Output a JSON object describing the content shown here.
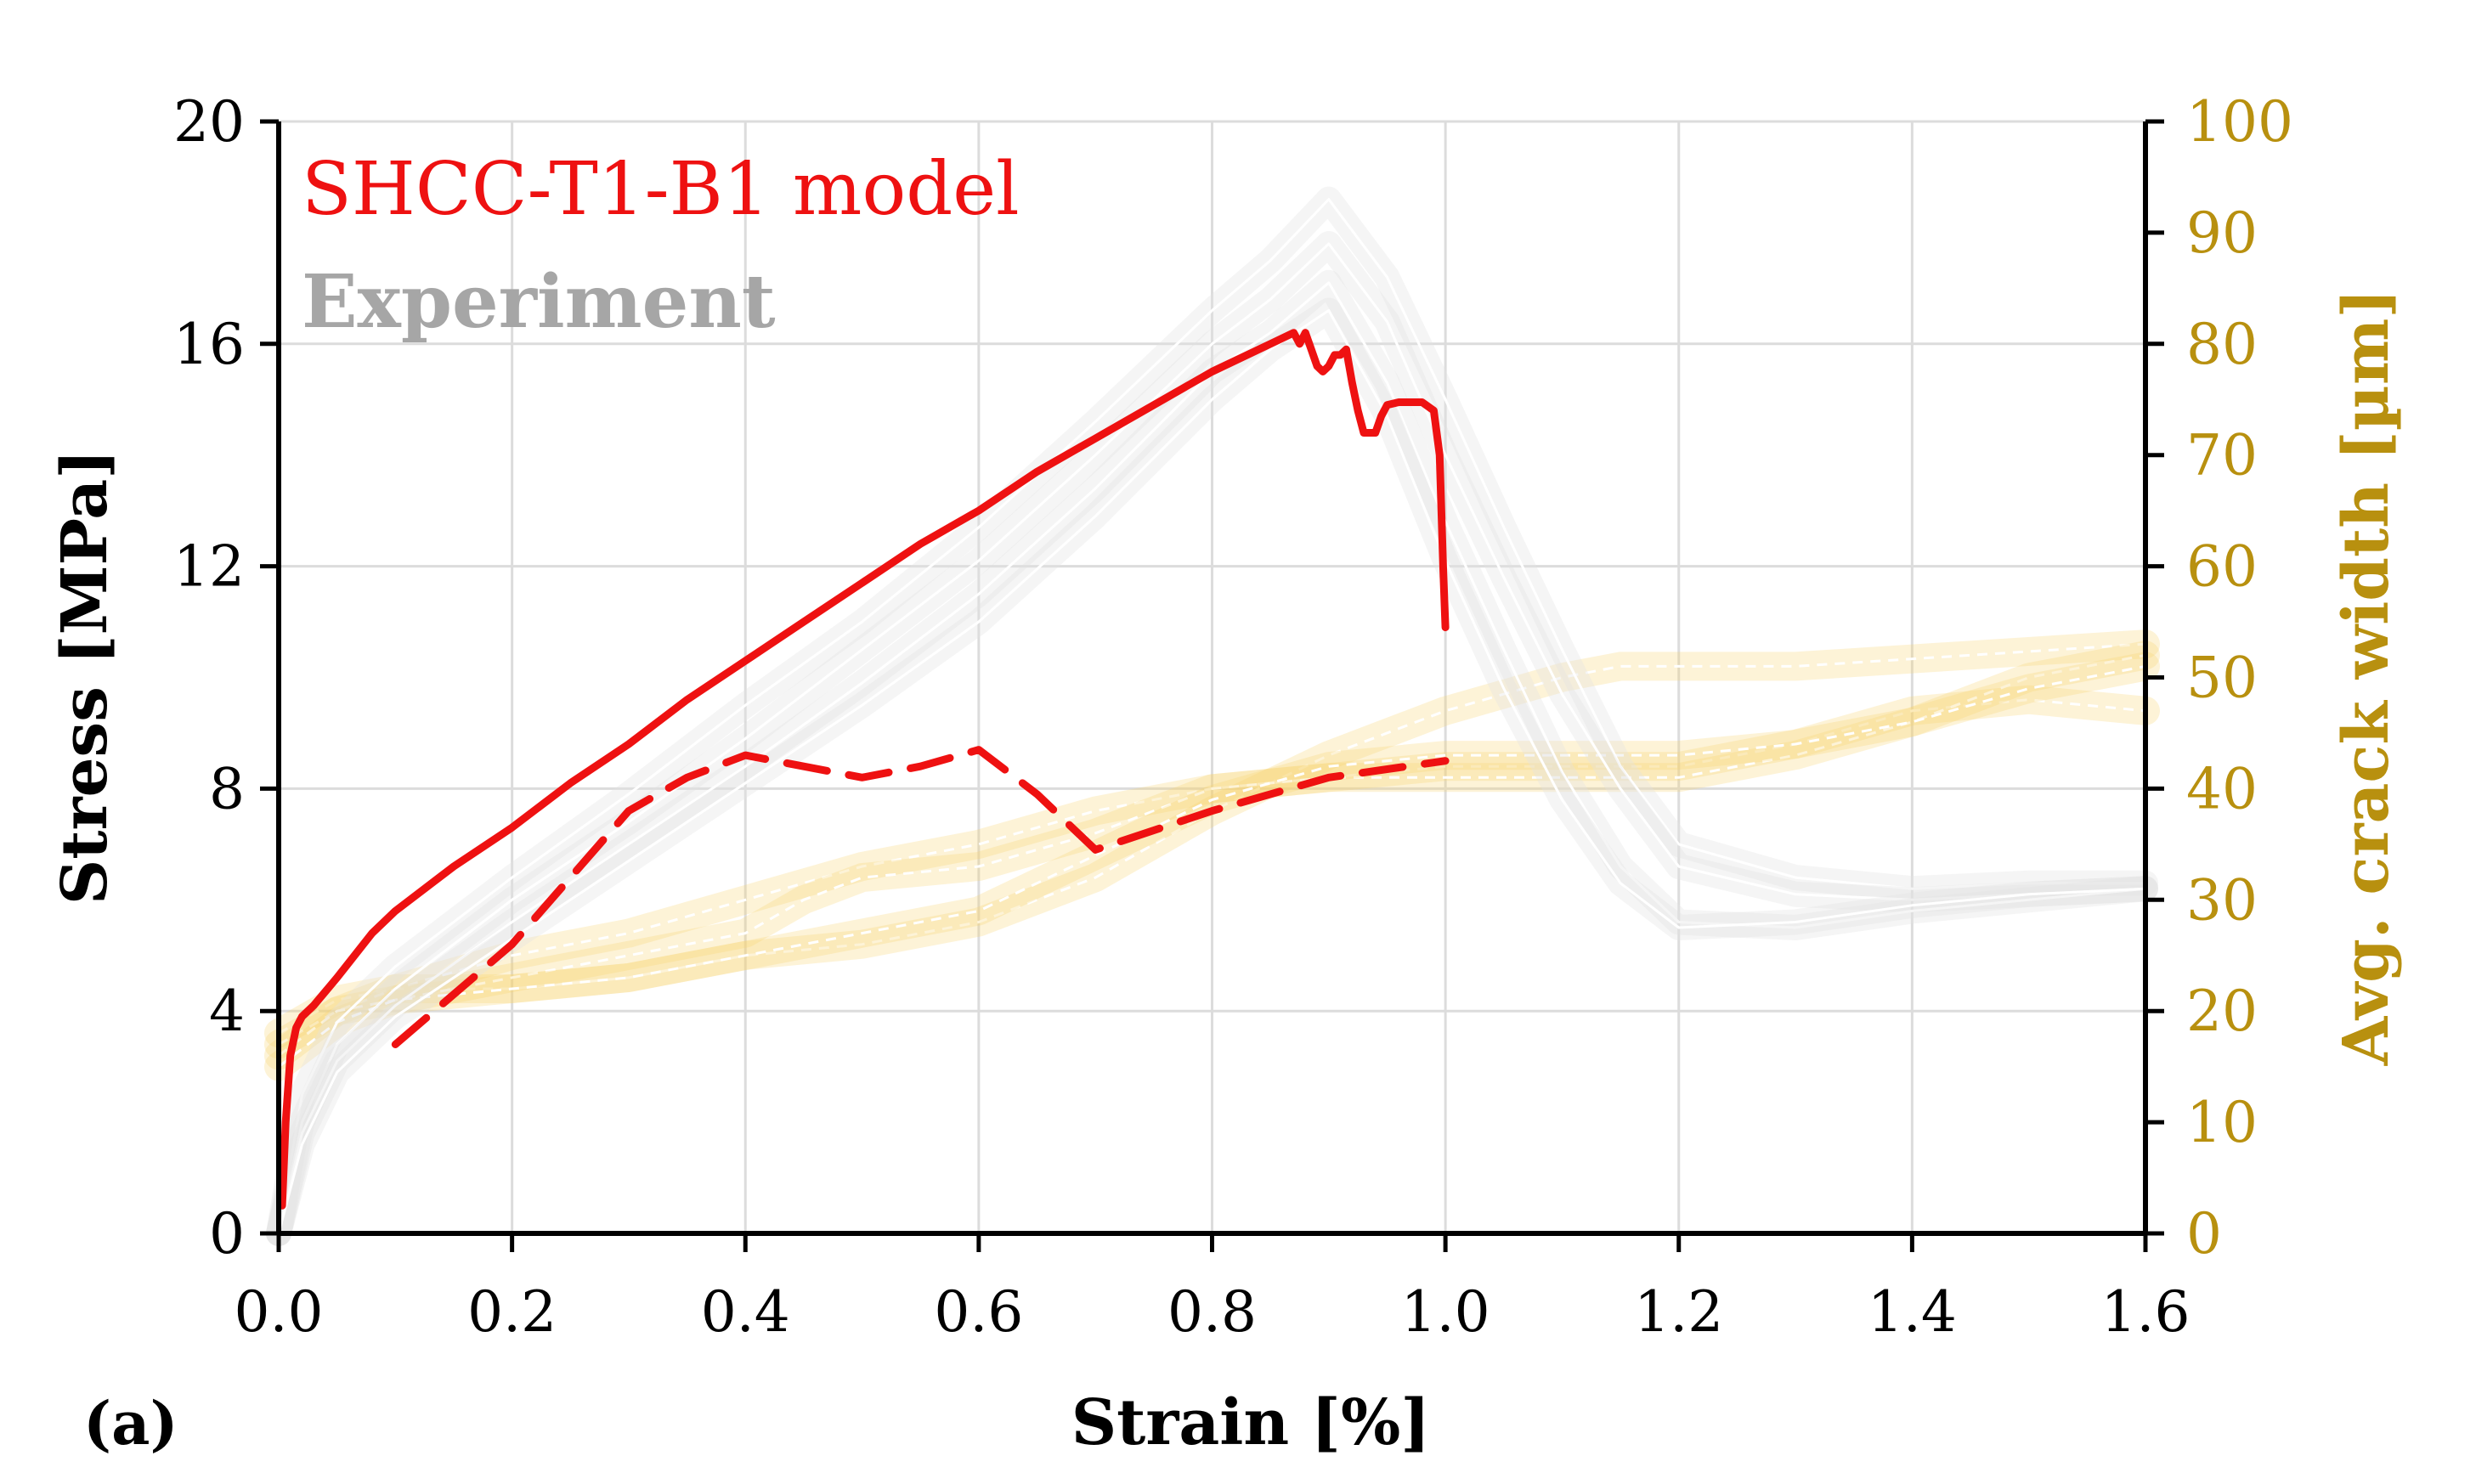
{
  "chart_data": {
    "type": "line",
    "panel_label": "(a)",
    "xlabel": "Strain [%]",
    "ylabel": "Stress [MPa]",
    "y2label": "Avg. crack width [µm]",
    "xlim": [
      0,
      1.6
    ],
    "ylim": [
      0,
      20
    ],
    "y2lim": [
      0,
      100
    ],
    "x_ticks": [
      "0.0",
      "0.2",
      "0.4",
      "0.6",
      "0.8",
      "1.0",
      "1.2",
      "1.4",
      "1.6"
    ],
    "y_ticks": [
      "0",
      "4",
      "8",
      "12",
      "16",
      "20"
    ],
    "y2_ticks": [
      "0",
      "10",
      "20",
      "30",
      "40",
      "50",
      "60",
      "70",
      "80",
      "90",
      "100"
    ],
    "grid": true,
    "legend": [
      {
        "label": "SHCC-T1-B1 model",
        "color": "#ee1111"
      },
      {
        "label": "Experiment",
        "color": "#a6a6a6"
      }
    ],
    "colors": {
      "model": "#ee1111",
      "experiment_stress": "#e2e2e2",
      "experiment_crack": "#f7d56e",
      "secondary_axis": "#b8900f"
    },
    "series": [
      {
        "name": "SHCC-T1-B1 model stress",
        "axis": "left",
        "style": "solid",
        "x": [
          0.003,
          0.006,
          0.01,
          0.015,
          0.02,
          0.03,
          0.05,
          0.08,
          0.1,
          0.15,
          0.2,
          0.25,
          0.3,
          0.35,
          0.4,
          0.45,
          0.5,
          0.55,
          0.6,
          0.65,
          0.7,
          0.75,
          0.8,
          0.85,
          0.87,
          0.875,
          0.88,
          0.885,
          0.89,
          0.895,
          0.9,
          0.905,
          0.91,
          0.915,
          0.92,
          0.925,
          0.93,
          0.94,
          0.945,
          0.95,
          0.96,
          0.98,
          0.99,
          0.995,
          0.998,
          1.0
        ],
        "y": [
          0.5,
          2.0,
          3.2,
          3.7,
          3.9,
          4.1,
          4.6,
          5.4,
          5.8,
          6.6,
          7.3,
          8.1,
          8.8,
          9.6,
          10.3,
          11.0,
          11.7,
          12.4,
          13.0,
          13.7,
          14.3,
          14.9,
          15.5,
          16.0,
          16.2,
          16.0,
          16.2,
          15.9,
          15.6,
          15.5,
          15.6,
          15.8,
          15.8,
          15.9,
          15.3,
          14.8,
          14.4,
          14.4,
          14.7,
          14.9,
          14.95,
          14.95,
          14.8,
          14.0,
          12.0,
          10.9
        ]
      },
      {
        "name": "SHCC-T1-B1 model crack width",
        "axis": "right",
        "style": "dashed",
        "x": [
          0.1,
          0.2,
          0.3,
          0.35,
          0.4,
          0.5,
          0.55,
          0.6,
          0.65,
          0.7,
          0.8,
          0.9,
          1.0
        ],
        "y": [
          17,
          26,
          38,
          41,
          43,
          41,
          42,
          43.5,
          39.5,
          34.5,
          38,
          41,
          42.5
        ]
      },
      {
        "name": "Experiment stress 1",
        "axis": "left",
        "style": "solid",
        "x": [
          0,
          0.02,
          0.05,
          0.1,
          0.2,
          0.3,
          0.4,
          0.5,
          0.6,
          0.7,
          0.8,
          0.85,
          0.9,
          0.95,
          1.0,
          1.05,
          1.1,
          1.15,
          1.2,
          1.3,
          1.4,
          1.5,
          1.6
        ],
        "y": [
          0,
          2.5,
          3.8,
          4.8,
          6.4,
          7.9,
          9.5,
          11.0,
          12.7,
          14.6,
          16.6,
          17.5,
          18.6,
          17.2,
          15.0,
          12.7,
          10.5,
          8.4,
          7.0,
          6.4,
          6.2,
          6.3,
          6.3
        ]
      },
      {
        "name": "Experiment stress 2",
        "axis": "left",
        "style": "solid",
        "x": [
          0,
          0.02,
          0.05,
          0.1,
          0.2,
          0.3,
          0.4,
          0.5,
          0.6,
          0.7,
          0.8,
          0.85,
          0.9,
          0.95,
          1.0,
          1.05,
          1.1,
          1.15,
          1.2,
          1.3,
          1.4,
          1.5,
          1.6
        ],
        "y": [
          0,
          2.0,
          3.4,
          4.4,
          6.0,
          7.4,
          8.9,
          10.5,
          12.1,
          14.0,
          16.0,
          16.8,
          17.8,
          16.4,
          14.0,
          11.8,
          9.7,
          8.0,
          6.6,
          6.1,
          6.0,
          6.1,
          6.2
        ]
      },
      {
        "name": "Experiment stress 3",
        "axis": "left",
        "style": "solid",
        "x": [
          0,
          0.02,
          0.05,
          0.1,
          0.2,
          0.3,
          0.4,
          0.5,
          0.6,
          0.7,
          0.8,
          0.85,
          0.9,
          0.95,
          1.0,
          1.05,
          1.1,
          1.15,
          1.2,
          1.3,
          1.4,
          1.5,
          1.6
        ],
        "y": [
          0,
          1.8,
          3.1,
          4.1,
          5.6,
          7.0,
          8.4,
          9.9,
          11.5,
          13.4,
          15.5,
          16.2,
          17.1,
          15.3,
          12.8,
          10.5,
          8.3,
          6.6,
          5.6,
          5.5,
          5.8,
          6.0,
          6.2
        ]
      },
      {
        "name": "Experiment stress 4",
        "axis": "left",
        "style": "solid",
        "x": [
          0,
          0.02,
          0.05,
          0.1,
          0.2,
          0.3,
          0.4,
          0.5,
          0.6,
          0.7,
          0.8,
          0.85,
          0.9,
          0.95,
          1.0,
          1.05,
          1.1,
          1.15,
          1.2,
          1.3,
          1.4,
          1.5,
          1.6
        ],
        "y": [
          0,
          1.6,
          2.9,
          3.9,
          5.3,
          6.7,
          8.1,
          9.5,
          11.0,
          12.9,
          15.0,
          15.9,
          16.6,
          14.7,
          12.1,
          9.8,
          7.8,
          6.3,
          5.5,
          5.6,
          5.9,
          6.1,
          6.2
        ]
      },
      {
        "name": "Experiment crack width 1",
        "axis": "right",
        "style": "dashed",
        "x": [
          0,
          0.05,
          0.1,
          0.2,
          0.3,
          0.4,
          0.5,
          0.6,
          0.7,
          0.8,
          0.9,
          1.0,
          1.1,
          1.15,
          1.3,
          1.45,
          1.6
        ],
        "y": [
          18,
          21,
          22,
          22,
          23,
          25,
          26,
          28,
          32,
          38,
          43,
          47,
          50,
          51,
          51,
          52,
          53
        ]
      },
      {
        "name": "Experiment crack width 2",
        "axis": "right",
        "style": "dashed",
        "x": [
          0,
          0.05,
          0.1,
          0.2,
          0.3,
          0.4,
          0.5,
          0.6,
          0.7,
          0.8,
          0.9,
          1.0,
          1.1,
          1.2,
          1.3,
          1.4,
          1.5,
          1.6
        ],
        "y": [
          17,
          20,
          22,
          25,
          27,
          30,
          33,
          35,
          38,
          40,
          41,
          42,
          42,
          42,
          44,
          47,
          48,
          47
        ]
      },
      {
        "name": "Experiment crack width 3",
        "axis": "right",
        "style": "dashed",
        "x": [
          0,
          0.05,
          0.1,
          0.2,
          0.3,
          0.4,
          0.45,
          0.5,
          0.6,
          0.7,
          0.8,
          0.9,
          1.0,
          1.1,
          1.2,
          1.3,
          1.4,
          1.5,
          1.6
        ],
        "y": [
          16,
          20,
          21,
          23,
          25,
          27,
          30,
          32,
          33,
          36,
          40,
          41,
          41,
          41,
          41,
          43,
          46,
          50,
          52
        ]
      },
      {
        "name": "Experiment crack width 4",
        "axis": "right",
        "style": "dashed",
        "x": [
          0,
          0.05,
          0.1,
          0.2,
          0.3,
          0.4,
          0.5,
          0.6,
          0.7,
          0.8,
          0.9,
          1.0,
          1.1,
          1.2,
          1.3,
          1.4,
          1.5,
          1.6
        ],
        "y": [
          15,
          19,
          21,
          22,
          23,
          25,
          27,
          29,
          34,
          39,
          42,
          43,
          43,
          43,
          44,
          46,
          49,
          51
        ]
      }
    ]
  }
}
